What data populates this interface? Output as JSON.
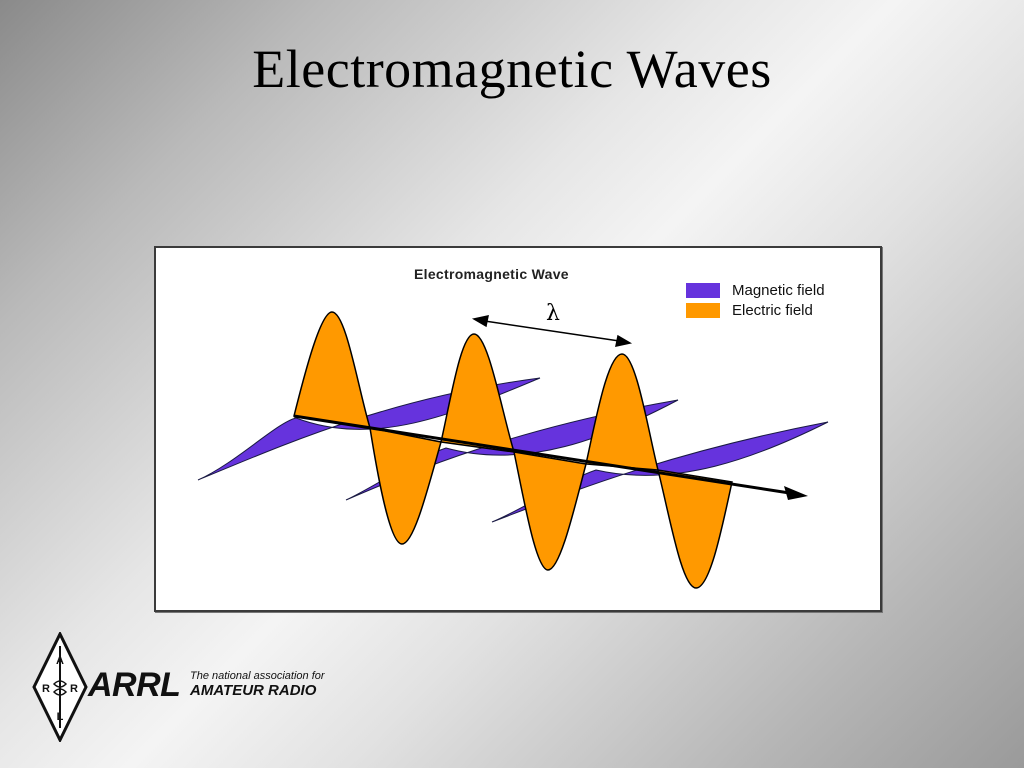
{
  "slide": {
    "title": "Electromagnetic Waves"
  },
  "figure": {
    "title": "Electromagnetic Wave",
    "lambda_label": "λ",
    "legend": [
      {
        "label": "Magnetic field",
        "color": "#6633dd"
      },
      {
        "label": "Electric field",
        "color": "#ff9900"
      }
    ]
  },
  "logo": {
    "name": "ARRL",
    "line1": "The national association for",
    "line2": "AMATEUR RADIO",
    "diamond_letters": [
      "A",
      "R",
      "R",
      "L"
    ]
  }
}
